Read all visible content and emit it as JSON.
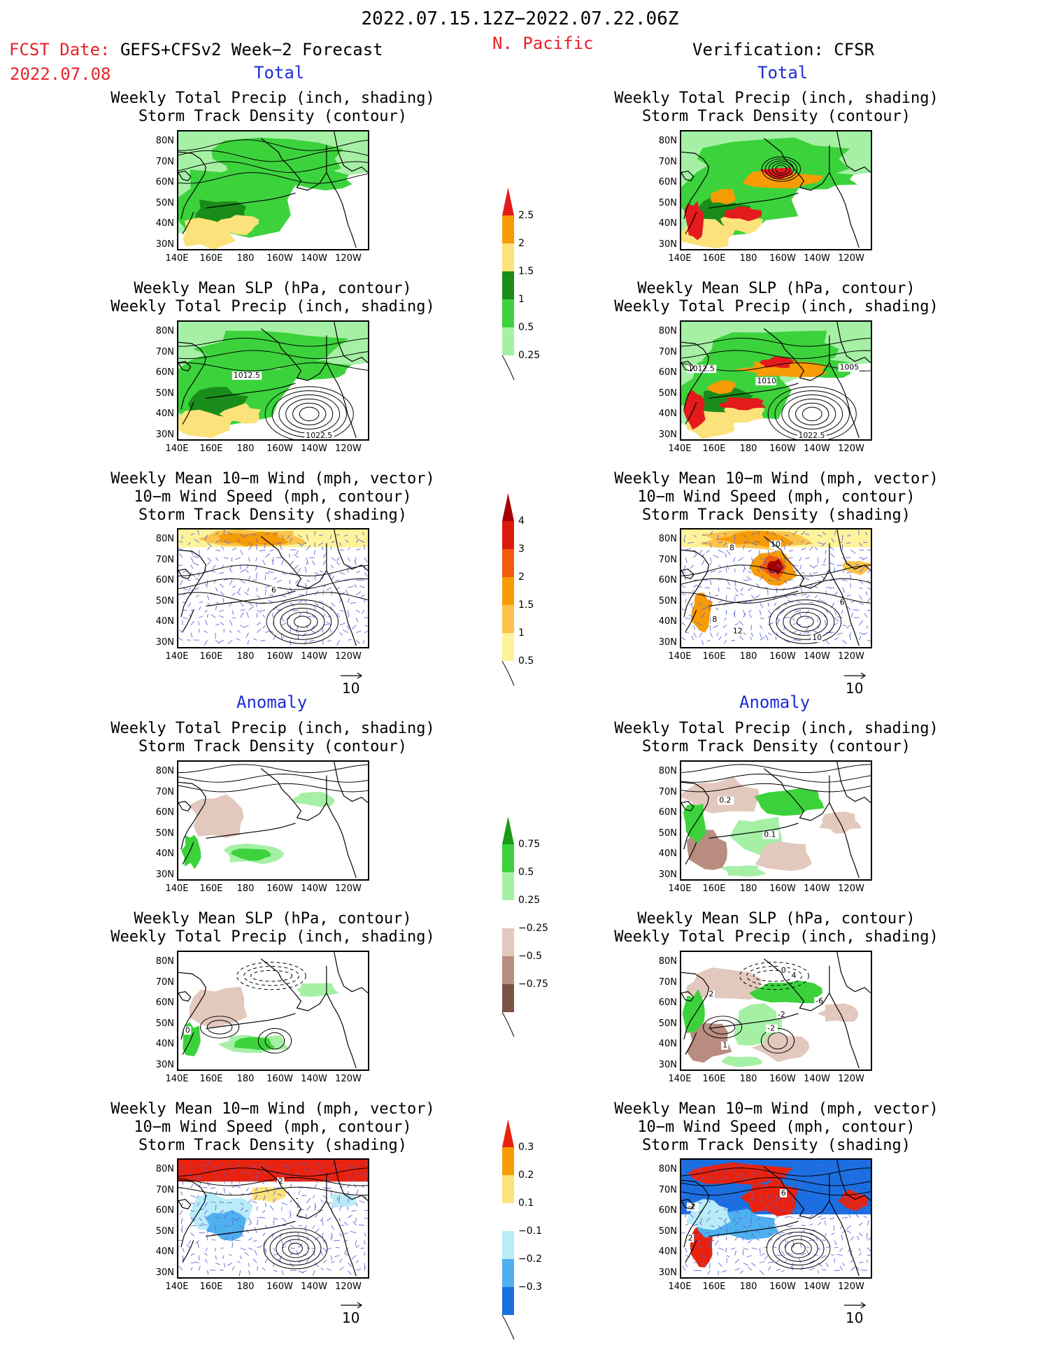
{
  "header": {
    "period": "2022.07.15.12Z−2022.07.22.06Z",
    "region": "N. Pacific",
    "fcst_label": "FCST Date:",
    "fcst_model": "GEFS+CFSv2 Week−2 Forecast",
    "fcst_date": "2022.07.08",
    "verification": "Verification: CFSR"
  },
  "sections": {
    "total": "Total",
    "anomaly": "Anomaly"
  },
  "panel_titles": {
    "precip_storm": [
      "Weekly Total Precip (inch, shading)",
      "Storm Track Density (contour)"
    ],
    "slp_precip": [
      "Weekly Mean SLP (hPa, contour)",
      "Weekly Total Precip (inch, shading)"
    ],
    "wind_storm": [
      "Weekly Mean 10−m Wind (mph, vector)",
      "10−m Wind Speed (mph, contour)",
      "Storm Track Density (shading)"
    ]
  },
  "axes": {
    "lat_labels": [
      "80N",
      "70N",
      "60N",
      "50N",
      "40N",
      "30N"
    ],
    "lon_labels": [
      "140E",
      "160E",
      "180",
      "160W",
      "140W",
      "120W"
    ]
  },
  "contour_labels": {
    "fc_slp_total": [
      "1012.5",
      "1022.5"
    ],
    "ob_slp_total": [
      "1012.5",
      "1010",
      "1005",
      "1022.5"
    ],
    "ob_wind_total": [
      "10",
      "8",
      "8",
      "12",
      "10",
      "6"
    ],
    "fc_wind_total": [
      "6"
    ],
    "ob_precip_anom": [
      "0.2",
      "0.1"
    ],
    "fc_slp_anom": [
      "0"
    ],
    "ob_slp_anom": [
      "0",
      "4",
      "-2",
      "2",
      "-6",
      "-2",
      "1"
    ],
    "fc_wind_anom": [
      "2",
      "-"
    ],
    "ob_wind_anom": [
      "-2",
      "6",
      "2"
    ]
  },
  "vector_reference": "10",
  "colorbars": {
    "precip_total": {
      "labels": [
        "2.5",
        "2",
        "1.5",
        "1",
        "0.5",
        "0.25"
      ],
      "colors": [
        "#e41a1c",
        "#f79b06",
        "#fce27a",
        "#1a8c1a",
        "#3cd23c",
        "#a6f0a6"
      ]
    },
    "storm_total": {
      "labels": [
        "4",
        "3",
        "2",
        "1.5",
        "1",
        "0.5"
      ],
      "colors": [
        "#a50000",
        "#dc1b0d",
        "#f45a0b",
        "#f79b06",
        "#fbc34a",
        "#fef39a"
      ]
    },
    "precip_anom": {
      "labels": [
        "0.75",
        "0.5",
        "0.25",
        "−0.25",
        "−0.5",
        "−0.75"
      ],
      "colors": [
        "#1b9a1b",
        "#3cd23c",
        "#a6f0a6",
        "#ffffff",
        "#e3c8bd",
        "#b88d80",
        "#7c5246"
      ]
    },
    "storm_anom": {
      "labels": [
        "0.3",
        "0.2",
        "0.1",
        "−0.1",
        "−0.2",
        "−0.3"
      ],
      "colors": [
        "#e8220e",
        "#f79b06",
        "#fce27a",
        "#ffffff",
        "#b9ecf7",
        "#4fb0f0",
        "#1a6fe0"
      ]
    }
  }
}
